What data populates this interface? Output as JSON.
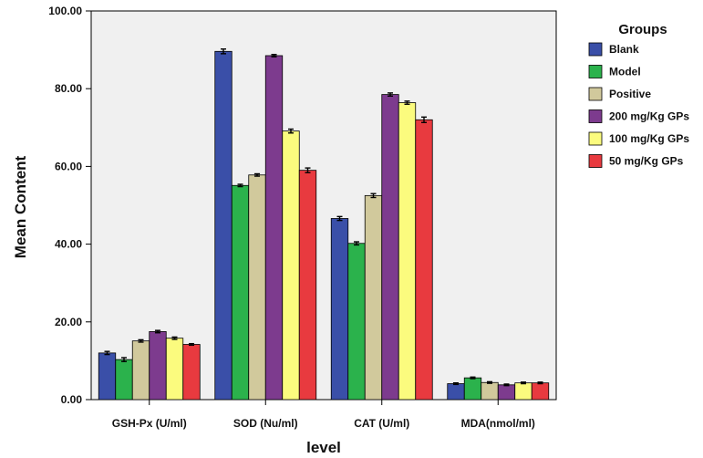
{
  "chart_data": {
    "type": "bar",
    "categories": [
      "GSH-Px (U/ml)",
      "SOD (Nu/ml)",
      "CAT (U/ml)",
      "MDA(nmol/ml)"
    ],
    "series": [
      {
        "name": "Blank",
        "color": "#3a4fa8",
        "values": [
          12.0,
          89.6,
          46.6,
          4.1
        ],
        "errors": [
          0.4,
          0.6,
          0.5,
          0.2
        ]
      },
      {
        "name": "Model",
        "color": "#2bb24c",
        "values": [
          10.3,
          55.1,
          40.2,
          5.6
        ],
        "errors": [
          0.5,
          0.3,
          0.4,
          0.2
        ]
      },
      {
        "name": "Positive",
        "color": "#d1c99c",
        "values": [
          15.1,
          57.8,
          52.5,
          4.4
        ],
        "errors": [
          0.3,
          0.3,
          0.5,
          0.2
        ]
      },
      {
        "name": "200 mg/Kg GPs",
        "color": "#7d3b8e",
        "values": [
          17.5,
          88.5,
          78.5,
          3.8
        ],
        "errors": [
          0.3,
          0.3,
          0.4,
          0.2
        ]
      },
      {
        "name": "100  mg/Kg GPs",
        "color": "#fbfb7e",
        "values": [
          15.8,
          69.1,
          76.4,
          4.3
        ],
        "errors": [
          0.3,
          0.5,
          0.4,
          0.2
        ]
      },
      {
        "name": "50  mg/Kg GPs",
        "color": "#e83a3f",
        "values": [
          14.2,
          59.0,
          72.0,
          4.3
        ],
        "errors": [
          0.2,
          0.6,
          0.7,
          0.2
        ]
      }
    ],
    "title": "",
    "xlabel": "level",
    "ylabel": "Mean Content",
    "ylim": [
      0,
      100
    ],
    "yticks": [
      "0.00",
      "20.00",
      "40.00",
      "60.00",
      "80.00",
      "100.00"
    ],
    "legend_title": "Groups",
    "legend_position": "right",
    "grid": false,
    "plot_background": "#f0f0f0",
    "error_bars": true
  }
}
